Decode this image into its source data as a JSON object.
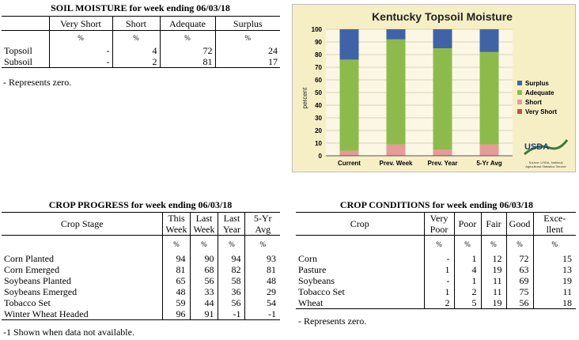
{
  "soil": {
    "title": "SOIL MOISTURE for week ending 06/03/18",
    "headers": [
      "",
      "Very Short",
      "Short",
      "Adequate",
      "Surplus"
    ],
    "units": [
      "",
      "%",
      "%",
      "%",
      "%"
    ],
    "rows": [
      {
        "label": "Topsoil",
        "values": [
          "-",
          "4",
          "72",
          "24"
        ]
      },
      {
        "label": "Subsoil",
        "values": [
          "-",
          "2",
          "81",
          "17"
        ]
      }
    ],
    "note": "- Represents zero."
  },
  "chart": {
    "title": "Kentucky Topsoil Moisture",
    "ylabel": "percent",
    "legend": [
      "Surplus",
      "Adequate",
      "Short",
      "Very Short"
    ],
    "logo_text": "USDA",
    "source": "Source: USDA, National Agricultural Statistics Service",
    "colors": {
      "Surplus": "#3f63a6",
      "Adequate": "#8dbb4b",
      "Short": "#e69a9a",
      "Very Short": "#c0504d"
    }
  },
  "chart_data": {
    "type": "bar",
    "title": "Kentucky Topsoil Moisture",
    "ylabel": "percent",
    "xlabel": "",
    "categories": [
      "Current",
      "Prev. Week",
      "Prev. Year",
      "5-Yr Avg"
    ],
    "series": [
      {
        "name": "Very Short",
        "values": [
          0,
          0,
          0,
          0
        ]
      },
      {
        "name": "Short",
        "values": [
          4,
          9,
          5,
          9
        ]
      },
      {
        "name": "Adequate",
        "values": [
          72,
          83,
          80,
          73
        ]
      },
      {
        "name": "Surplus",
        "values": [
          24,
          8,
          15,
          18
        ]
      }
    ],
    "stacked": true,
    "ylim": [
      0,
      100
    ],
    "yticks": [
      0,
      10,
      20,
      30,
      40,
      50,
      60,
      70,
      80,
      90,
      100
    ],
    "grid": true,
    "legend_position": "right"
  },
  "progress": {
    "title": "CROP PROGRESS for week ending 06/03/18",
    "headers": [
      {
        "l1": "Crop Stage",
        "l2": ""
      },
      {
        "l1": "This",
        "l2": "Week"
      },
      {
        "l1": "Last",
        "l2": "Week"
      },
      {
        "l1": "Last",
        "l2": "Year"
      },
      {
        "l1": "5-Yr",
        "l2": "Avg"
      }
    ],
    "unit": "%",
    "rows": [
      {
        "label": "Corn Planted",
        "values": [
          "94",
          "90",
          "94",
          "93"
        ]
      },
      {
        "label": "Corn Emerged",
        "values": [
          "81",
          "68",
          "82",
          "81"
        ]
      },
      {
        "label": "Soybeans Planted",
        "values": [
          "65",
          "56",
          "58",
          "48"
        ]
      },
      {
        "label": "Soybeans Emerged",
        "values": [
          "48",
          "33",
          "36",
          "29"
        ]
      },
      {
        "label": "Tobacco Set",
        "values": [
          "59",
          "44",
          "56",
          "54"
        ]
      },
      {
        "label": "Winter Wheat Headed",
        "values": [
          "96",
          "91",
          "-1",
          "-1"
        ]
      }
    ],
    "note": "-1 Shown when data not available."
  },
  "conditions": {
    "title": "CROP CONDITIONS for week ending 06/03/18",
    "headers": [
      {
        "l1": "Crop",
        "l2": ""
      },
      {
        "l1": "Very",
        "l2": "Poor"
      },
      {
        "l1": "Poor",
        "l2": ""
      },
      {
        "l1": "Fair",
        "l2": ""
      },
      {
        "l1": "Good",
        "l2": ""
      },
      {
        "l1": "Exce-",
        "l2": "llent"
      }
    ],
    "unit": "%",
    "rows": [
      {
        "label": "Corn",
        "values": [
          "-",
          "1",
          "12",
          "72",
          "15"
        ]
      },
      {
        "label": "Pasture",
        "values": [
          "1",
          "4",
          "19",
          "63",
          "13"
        ]
      },
      {
        "label": "Soybeans",
        "values": [
          "-",
          "1",
          "11",
          "69",
          "19"
        ]
      },
      {
        "label": "Tobacco Set",
        "values": [
          "1",
          "2",
          "11",
          "75",
          "11"
        ]
      },
      {
        "label": "Wheat",
        "values": [
          "2",
          "5",
          "19",
          "56",
          "18"
        ]
      }
    ],
    "note": "- Represents zero."
  }
}
